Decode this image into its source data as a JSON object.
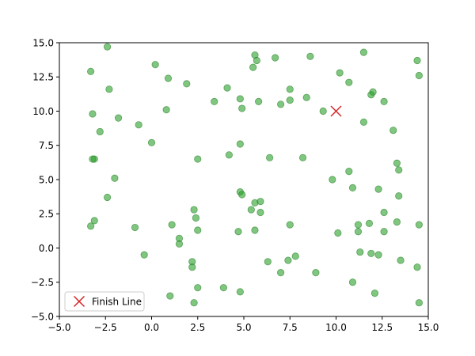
{
  "chart_data": {
    "type": "scatter",
    "xlim": [
      -5,
      15
    ],
    "ylim": [
      -5,
      15
    ],
    "xticks": [
      -5.0,
      -2.5,
      0.0,
      2.5,
      5.0,
      7.5,
      10.0,
      12.5,
      15.0
    ],
    "yticks": [
      -5.0,
      -2.5,
      0.0,
      2.5,
      5.0,
      7.5,
      10.0,
      12.5,
      15.0
    ],
    "xtick_labels": [
      "−5.0",
      "−2.5",
      "0.0",
      "2.5",
      "5.0",
      "7.5",
      "10.0",
      "12.5",
      "15.0"
    ],
    "ytick_labels": [
      "−5.0",
      "−2.5",
      "0.0",
      "2.5",
      "5.0",
      "7.5",
      "10.0",
      "12.5",
      "15.0"
    ],
    "grid": false,
    "legend_position": "lower-left",
    "point_color": "#2ca02c",
    "point_edge_color": "#1a7a1a",
    "marker_color": "#d62728",
    "points": [
      [
        -2.4,
        14.7
      ],
      [
        -3.3,
        12.9
      ],
      [
        -2.3,
        11.6
      ],
      [
        -3.2,
        9.8
      ],
      [
        -1.8,
        9.5
      ],
      [
        -2.8,
        8.5
      ],
      [
        -3.1,
        6.5
      ],
      [
        -3.2,
        6.5
      ],
      [
        -2.0,
        5.1
      ],
      [
        -2.4,
        3.7
      ],
      [
        -3.1,
        2.0
      ],
      [
        -3.3,
        1.6
      ],
      [
        0.2,
        13.4
      ],
      [
        0.9,
        12.4
      ],
      [
        1.9,
        12.0
      ],
      [
        0.8,
        10.1
      ],
      [
        -0.7,
        9.0
      ],
      [
        0.0,
        7.7
      ],
      [
        -0.9,
        1.5
      ],
      [
        -0.4,
        -0.5
      ],
      [
        1.1,
        1.7
      ],
      [
        1.5,
        0.7
      ],
      [
        1.5,
        0.3
      ],
      [
        2.5,
        6.5
      ],
      [
        2.3,
        2.8
      ],
      [
        2.4,
        2.2
      ],
      [
        2.5,
        1.3
      ],
      [
        2.2,
        -1.0
      ],
      [
        2.2,
        -1.4
      ],
      [
        2.5,
        -2.9
      ],
      [
        1.0,
        -3.5
      ],
      [
        2.3,
        -4.0
      ],
      [
        3.4,
        10.7
      ],
      [
        4.1,
        11.7
      ],
      [
        4.2,
        6.8
      ],
      [
        3.9,
        -2.9
      ],
      [
        4.8,
        10.9
      ],
      [
        4.9,
        10.2
      ],
      [
        4.8,
        7.6
      ],
      [
        4.8,
        4.1
      ],
      [
        4.9,
        3.9
      ],
      [
        4.7,
        1.2
      ],
      [
        4.8,
        -3.2
      ],
      [
        5.6,
        14.1
      ],
      [
        5.7,
        13.7
      ],
      [
        5.5,
        13.2
      ],
      [
        5.8,
        10.7
      ],
      [
        5.6,
        3.3
      ],
      [
        5.9,
        3.4
      ],
      [
        5.4,
        2.8
      ],
      [
        5.9,
        2.6
      ],
      [
        5.6,
        1.3
      ],
      [
        6.7,
        13.9
      ],
      [
        7.0,
        10.5
      ],
      [
        6.4,
        6.6
      ],
      [
        6.3,
        -1.0
      ],
      [
        7.0,
        -1.8
      ],
      [
        7.5,
        11.6
      ],
      [
        7.5,
        10.8
      ],
      [
        7.5,
        1.7
      ],
      [
        7.4,
        -0.9
      ],
      [
        7.8,
        -0.6
      ],
      [
        8.4,
        11.0
      ],
      [
        8.2,
        6.6
      ],
      [
        8.6,
        14.0
      ],
      [
        9.3,
        10.0
      ],
      [
        9.8,
        5.0
      ],
      [
        8.9,
        -1.8
      ],
      [
        10.2,
        12.8
      ],
      [
        10.7,
        12.1
      ],
      [
        10.7,
        5.6
      ],
      [
        10.9,
        4.4
      ],
      [
        10.1,
        1.1
      ],
      [
        10.9,
        -2.5
      ],
      [
        11.5,
        14.3
      ],
      [
        11.9,
        11.2
      ],
      [
        12.0,
        11.4
      ],
      [
        11.5,
        9.2
      ],
      [
        12.6,
        10.7
      ],
      [
        11.2,
        1.7
      ],
      [
        11.2,
        1.2
      ],
      [
        11.8,
        1.8
      ],
      [
        11.3,
        -0.3
      ],
      [
        11.9,
        -0.4
      ],
      [
        12.3,
        -0.5
      ],
      [
        12.1,
        -3.3
      ],
      [
        12.3,
        4.3
      ],
      [
        12.6,
        2.6
      ],
      [
        12.6,
        1.2
      ],
      [
        13.1,
        8.6
      ],
      [
        13.3,
        6.2
      ],
      [
        13.4,
        5.7
      ],
      [
        13.4,
        3.8
      ],
      [
        13.3,
        1.9
      ],
      [
        13.5,
        -0.9
      ],
      [
        14.4,
        13.7
      ],
      [
        14.5,
        12.6
      ],
      [
        14.5,
        1.7
      ],
      [
        14.4,
        -1.4
      ],
      [
        14.5,
        -4.0
      ]
    ],
    "finish_line": {
      "x": 10.0,
      "y": 10.0,
      "label": "Finish Line"
    }
  }
}
